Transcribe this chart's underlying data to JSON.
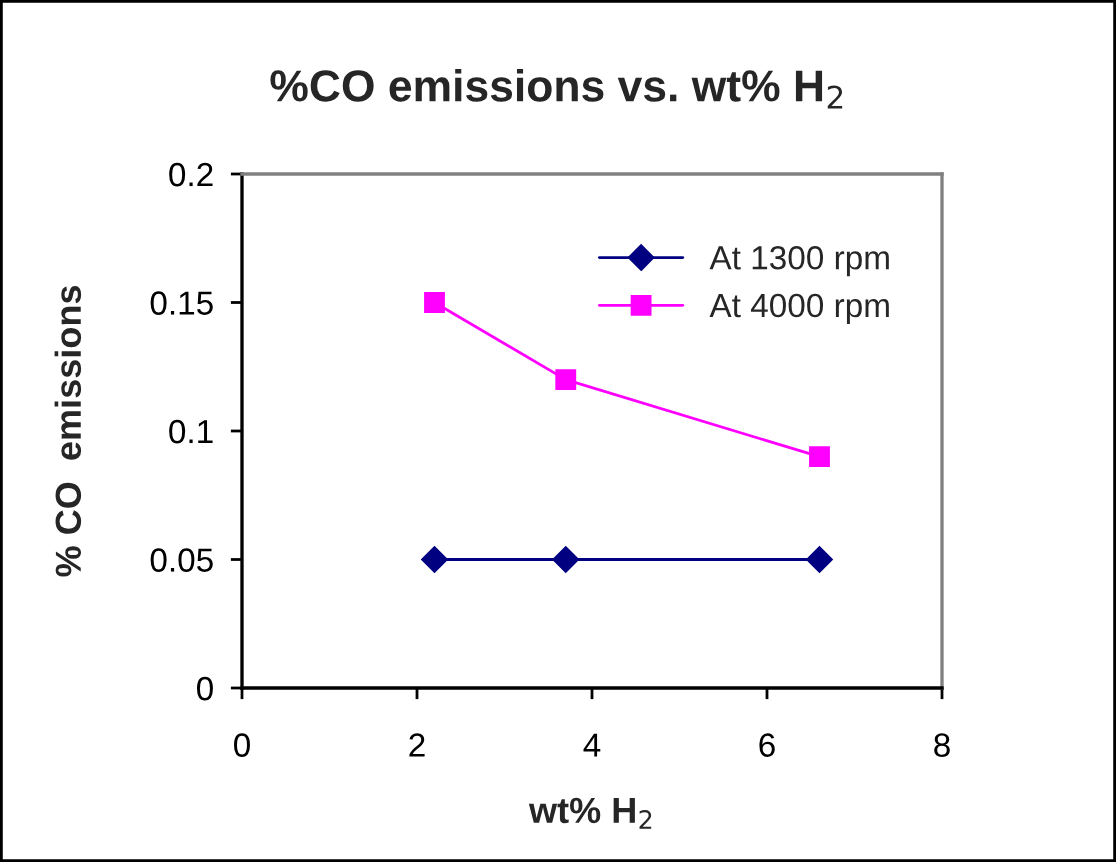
{
  "chart_data": {
    "type": "line",
    "title": "%CO emissions vs. wt% H$_{2}$",
    "xlabel": "wt% H$_{2}$",
    "ylabel": "% CO  emissions",
    "x": [
      2.2,
      3.7,
      6.6
    ],
    "series": [
      {
        "name": "At 1300 rpm",
        "color": "#000080",
        "marker": "diamond",
        "values": [
          0.05,
          0.05,
          0.05
        ]
      },
      {
        "name": "At 4000 rpm",
        "color": "#ff00ff",
        "marker": "square",
        "values": [
          0.15,
          0.12,
          0.09
        ]
      }
    ],
    "xlim": [
      0,
      8
    ],
    "xticks": [
      0,
      2,
      4,
      6,
      8
    ],
    "ylim": [
      0,
      0.2
    ],
    "yticks": [
      0,
      0.05,
      0.1,
      0.15,
      0.2
    ],
    "grid": false,
    "legend": "top right",
    "line_style": "solid"
  }
}
